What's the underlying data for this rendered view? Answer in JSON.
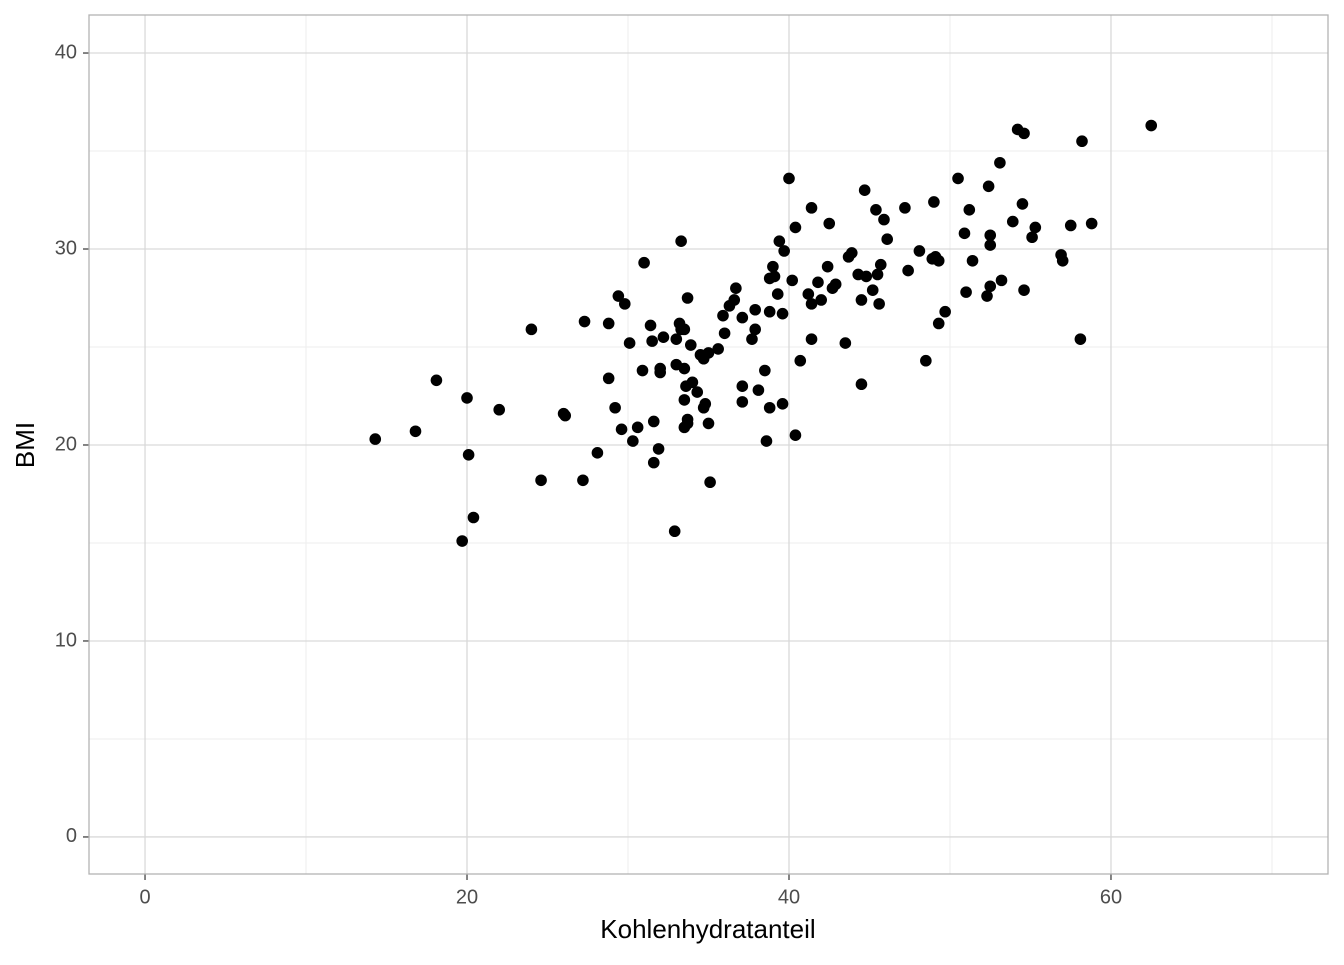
{
  "chart_data": {
    "type": "scatter",
    "x_label": "Kohlenhydratanteil",
    "y_label": "BMI",
    "color": "#000000",
    "x": [
      14.3,
      16.8,
      18.1,
      20.0,
      20.1,
      19.7,
      20.4,
      22.0,
      24.0,
      24.6,
      26.0,
      26.1,
      27.3,
      27.2,
      28.1,
      28.8,
      28.8,
      29.2,
      29.4,
      29.8,
      29.6,
      30.1,
      30.3,
      30.6,
      31.0,
      30.9,
      31.4,
      31.5,
      31.6,
      31.6,
      31.9,
      32.0,
      32.0,
      32.2,
      32.9,
      33.0,
      33.2,
      33.3,
      33.0,
      33.3,
      33.5,
      33.5,
      33.6,
      33.5,
      33.5,
      33.7,
      33.7,
      33.7,
      33.9,
      34.0,
      34.3,
      34.5,
      34.7,
      34.7,
      34.8,
      35.0,
      35.1,
      35.0,
      35.6,
      35.9,
      36.0,
      36.3,
      36.6,
      36.7,
      37.1,
      37.1,
      37.1,
      37.7,
      37.9,
      37.9,
      38.1,
      38.5,
      38.6,
      38.8,
      38.8,
      38.8,
      39.0,
      39.1,
      39.3,
      39.4,
      39.6,
      39.6,
      39.7,
      40.0,
      40.2,
      40.4,
      40.4,
      40.7,
      41.2,
      41.4,
      41.4,
      41.4,
      41.8,
      42.0,
      42.4,
      42.5,
      42.7,
      42.9,
      43.5,
      43.7,
      43.9,
      44.3,
      44.5,
      44.5,
      44.7,
      44.8,
      45.2,
      45.4,
      45.5,
      45.6,
      45.7,
      45.9,
      46.1,
      47.2,
      47.4,
      48.1,
      48.5,
      49.0,
      48.9,
      49.1,
      49.3,
      49.3,
      49.7,
      50.5,
      50.9,
      51.0,
      51.2,
      51.4,
      52.4,
      52.5,
      52.5,
      52.5,
      52.3,
      53.1,
      53.2,
      53.9,
      54.2,
      54.6,
      54.5,
      54.6,
      55.1,
      55.3,
      56.9,
      57.0,
      57.5,
      58.2,
      58.1,
      58.8,
      62.5
    ],
    "values": [
      20.3,
      20.7,
      23.3,
      22.4,
      19.5,
      15.1,
      16.3,
      21.8,
      25.9,
      18.2,
      21.6,
      21.5,
      26.3,
      18.2,
      19.6,
      23.4,
      26.2,
      21.9,
      27.6,
      27.2,
      20.8,
      25.2,
      20.2,
      20.9,
      29.3,
      23.8,
      26.1,
      25.3,
      21.2,
      19.1,
      19.8,
      23.9,
      23.7,
      25.5,
      15.6,
      25.4,
      26.2,
      30.4,
      24.1,
      25.9,
      25.9,
      23.9,
      23.0,
      22.3,
      20.9,
      21.1,
      21.3,
      27.5,
      25.1,
      23.2,
      22.7,
      24.6,
      24.4,
      21.9,
      22.1,
      21.1,
      18.1,
      24.7,
      24.9,
      26.6,
      25.7,
      27.1,
      27.4,
      28.0,
      26.5,
      23.0,
      22.2,
      25.4,
      26.9,
      25.9,
      22.8,
      23.8,
      20.2,
      21.9,
      26.8,
      28.5,
      29.1,
      28.6,
      27.7,
      30.4,
      22.1,
      26.7,
      29.9,
      33.6,
      28.4,
      31.1,
      20.5,
      24.3,
      27.7,
      32.1,
      27.2,
      25.4,
      28.3,
      27.4,
      29.1,
      31.3,
      28.0,
      28.2,
      25.2,
      29.6,
      29.8,
      28.7,
      27.4,
      23.1,
      33.0,
      28.6,
      27.9,
      32.0,
      28.7,
      27.2,
      29.2,
      31.5,
      30.5,
      32.1,
      28.9,
      29.9,
      24.3,
      32.4,
      29.5,
      29.6,
      29.4,
      26.2,
      26.8,
      33.6,
      30.8,
      27.8,
      32.0,
      29.4,
      33.2,
      30.7,
      30.2,
      28.1,
      27.6,
      34.4,
      28.4,
      31.4,
      36.1,
      35.9,
      32.3,
      27.9,
      30.6,
      31.1,
      29.7,
      29.4,
      31.2,
      35.5,
      25.4,
      31.3,
      36.3
    ],
    "xlim": [
      -3.48,
      73.48
    ],
    "ylim": [
      -1.89,
      41.94
    ],
    "xticks": [
      0,
      20,
      40,
      60
    ],
    "yticks": [
      0,
      10,
      20,
      30,
      40
    ],
    "x_minor_grid": [
      10,
      30,
      50,
      70
    ],
    "y_minor_grid": [
      5,
      15,
      25,
      35
    ],
    "grid": true
  }
}
